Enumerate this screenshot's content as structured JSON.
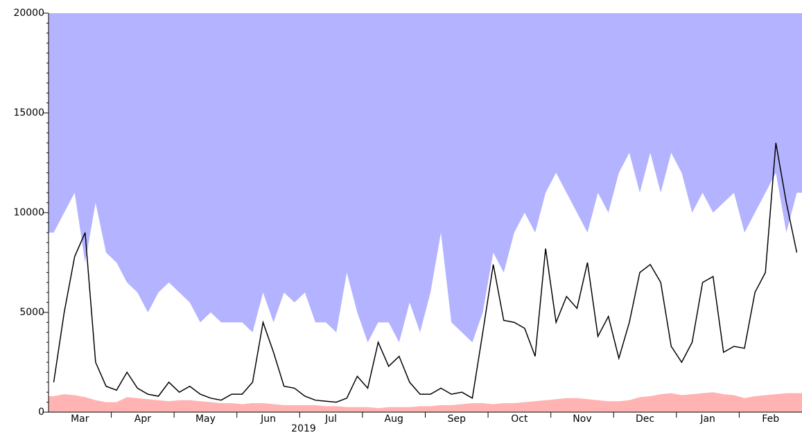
{
  "chart_data": {
    "type": "line",
    "categories": [
      null,
      null,
      null,
      "Mar",
      null,
      null,
      null,
      null,
      null,
      "Apr",
      null,
      null,
      null,
      null,
      null,
      "May",
      null,
      null,
      null,
      null,
      null,
      "Jun",
      null,
      null,
      null,
      null,
      null,
      "Jul",
      null,
      null,
      null,
      null,
      null,
      "Aug",
      null,
      null,
      null,
      null,
      null,
      "Sep",
      null,
      null,
      null,
      null,
      null,
      "Oct",
      null,
      null,
      null,
      null,
      null,
      "Nov",
      null,
      null,
      null,
      null,
      null,
      "Dec",
      null,
      null,
      null,
      null,
      null,
      "Jan",
      null,
      null,
      null,
      null,
      null,
      "Feb",
      null,
      null
    ],
    "xlabel": "2019",
    "ylim": [
      0,
      20000
    ],
    "yticks": [
      0,
      5000,
      10000,
      15000,
      20000
    ],
    "series": [
      {
        "fill": "above",
        "color": "#b3b3ff",
        "values": [
          9000,
          10000,
          11000,
          7500,
          10500,
          8000,
          7500,
          6500,
          6000,
          5000,
          6000,
          6500,
          6000,
          5500,
          4500,
          5000,
          4500,
          4500,
          4500,
          4000,
          6000,
          4500,
          6000,
          5500,
          6000,
          4500,
          4500,
          4000,
          7000,
          5000,
          3500,
          4500,
          4500,
          3500,
          5500,
          4000,
          6000,
          9000,
          4500,
          4000,
          3500,
          5000,
          8000,
          7000,
          9000,
          10000,
          9000,
          11000,
          12000,
          11000,
          10000,
          9000,
          11000,
          10000,
          12000,
          13000,
          11000,
          13000,
          11000,
          13000,
          12000,
          10000,
          11000,
          10000,
          10500,
          11000,
          9000,
          10000,
          11000,
          12000,
          9000,
          11000
        ]
      },
      {
        "fill": "below",
        "color": "#ffb3b3",
        "values": [
          800,
          900,
          850,
          750,
          600,
          500,
          500,
          750,
          700,
          650,
          600,
          550,
          600,
          600,
          550,
          500,
          450,
          450,
          400,
          450,
          450,
          400,
          350,
          350,
          350,
          350,
          300,
          300,
          250,
          250,
          250,
          200,
          250,
          250,
          250,
          300,
          300,
          350,
          350,
          400,
          450,
          450,
          400,
          450,
          450,
          500,
          550,
          600,
          650,
          700,
          700,
          650,
          600,
          550,
          550,
          600,
          750,
          800,
          900,
          950,
          850,
          900,
          950,
          1000,
          900,
          850,
          700,
          800,
          850,
          900,
          950,
          950
        ]
      },
      {
        "fill": "none",
        "color": "#000000",
        "values": [
          1500,
          5000,
          7800,
          9000,
          2500,
          1300,
          1100,
          2000,
          1200,
          900,
          800,
          1500,
          1000,
          1300,
          900,
          700,
          600,
          900,
          900,
          1500,
          4500,
          3000,
          1300,
          1200,
          800,
          600,
          550,
          500,
          700,
          1800,
          1200,
          3500,
          2300,
          2800,
          1500,
          900,
          900,
          1200,
          900,
          1000,
          700,
          4000,
          7400,
          4600,
          4500,
          4200,
          2800,
          8200,
          4500,
          5800,
          5200,
          7500,
          3800,
          4800,
          2700,
          4500,
          7000,
          7400,
          6500,
          3300,
          2500,
          3500,
          6500,
          6800,
          3000,
          3300,
          3200,
          6000,
          7000,
          13500,
          10500,
          8000
        ]
      }
    ]
  }
}
